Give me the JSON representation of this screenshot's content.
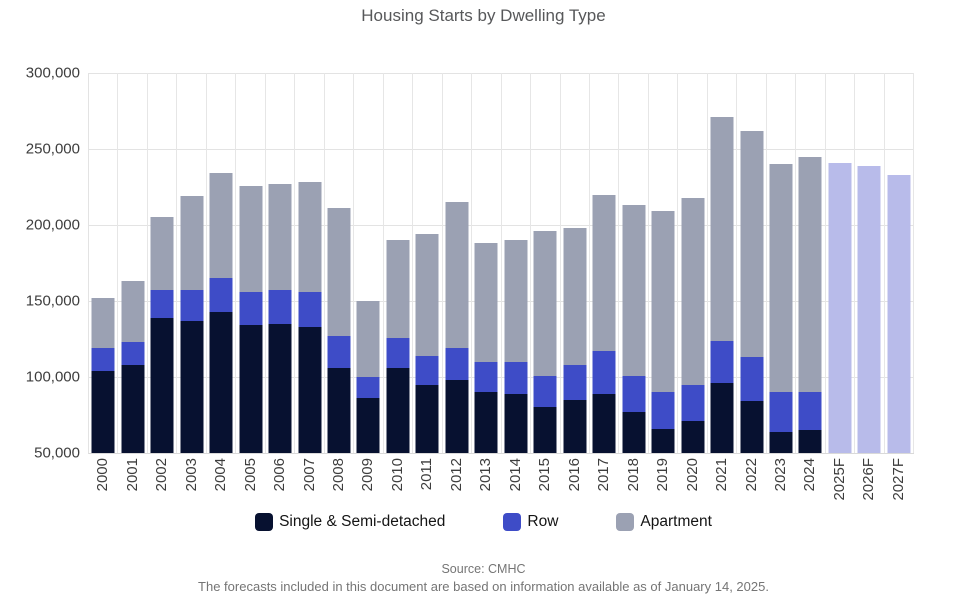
{
  "title": "Housing Starts by Dwelling Type",
  "footer": {
    "source": "Source: CMHC",
    "note": "The forecasts included in this document are based on information available as of January 14, 2025."
  },
  "legend": [
    {
      "label": "Single & Semi-detached",
      "color": "#071130"
    },
    {
      "label": "Row",
      "color": "#3e4cc7"
    },
    {
      "label": "Apartment",
      "color": "#9ba1b3"
    }
  ],
  "colors": {
    "single": "#071130",
    "row": "#3e4cc7",
    "apartment": "#9ba1b3",
    "forecast": "#b8bbea",
    "gridline": "#e3e3e3",
    "axis_text": "#3d3d3d",
    "title_text": "#57585a",
    "footer_text": "#757575"
  },
  "chart_data": {
    "type": "bar",
    "stacked": true,
    "title": "Housing Starts by Dwelling Type",
    "xlabel": "",
    "ylabel": "",
    "ylim": [
      50000,
      300000
    ],
    "yticks": [
      "300,000",
      "250,000",
      "200,000",
      "150,000",
      "100,000",
      "50,000"
    ],
    "grid": true,
    "legend_position": "bottom",
    "categories": [
      "2000",
      "2001",
      "2002",
      "2003",
      "2004",
      "2005",
      "2006",
      "2007",
      "2008",
      "2009",
      "2010",
      "2011",
      "2012",
      "2013",
      "2014",
      "2015",
      "2016",
      "2017",
      "2018",
      "2019",
      "2020",
      "2021",
      "2022",
      "2023",
      "2024",
      "2025F",
      "2026F",
      "2027F"
    ],
    "series": [
      {
        "name": "Single & Semi-detached",
        "color": "#071130",
        "values": [
          104000,
          108000,
          139000,
          137000,
          143000,
          134000,
          135000,
          133000,
          106000,
          86000,
          106000,
          95000,
          98000,
          90000,
          89000,
          80000,
          85000,
          89000,
          77000,
          66000,
          71000,
          96000,
          84000,
          64000,
          65000
        ]
      },
      {
        "name": "Row",
        "color": "#3e4cc7",
        "values": [
          15000,
          15000,
          18000,
          20000,
          22000,
          22000,
          22000,
          23000,
          21000,
          14000,
          20000,
          19000,
          21000,
          20000,
          21000,
          21000,
          23000,
          28000,
          24000,
          24000,
          24000,
          28000,
          29000,
          26000,
          25000
        ]
      },
      {
        "name": "Apartment",
        "color": "#9ba1b3",
        "values": [
          33000,
          40000,
          48000,
          62000,
          69000,
          70000,
          70000,
          72000,
          84000,
          50000,
          64000,
          80000,
          96000,
          78000,
          80000,
          95000,
          90000,
          103000,
          112000,
          119000,
          123000,
          147000,
          149000,
          150000,
          155000
        ]
      }
    ],
    "totals": [
      152000,
      163000,
      205000,
      219000,
      234000,
      226000,
      227000,
      228000,
      211000,
      150000,
      190000,
      194000,
      215000,
      188000,
      190000,
      196000,
      198000,
      220000,
      213000,
      209000,
      218000,
      271000,
      262000,
      240000,
      245000,
      241000,
      239000,
      233000
    ],
    "forecast": {
      "categories": [
        "2025F",
        "2026F",
        "2027F"
      ],
      "totals": [
        241000,
        239000,
        233000
      ],
      "color": "#b8bbea"
    }
  }
}
